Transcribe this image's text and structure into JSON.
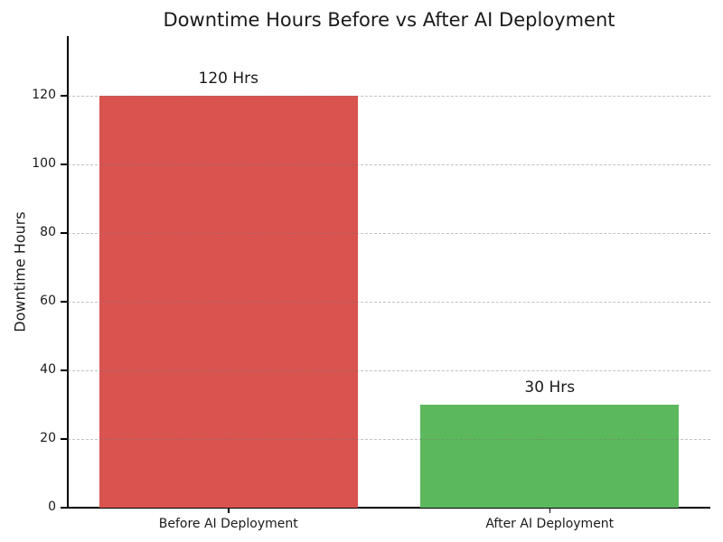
{
  "chart_data": {
    "type": "bar",
    "title": "Downtime Hours Before vs After AI Deployment",
    "xlabel": "",
    "ylabel": "Downtime Hours",
    "categories": [
      "Before AI Deployment",
      "After AI Deployment"
    ],
    "values": [
      120,
      30
    ],
    "bar_value_labels": [
      "120 Hrs",
      "30 Hrs"
    ],
    "bar_colors": [
      "#d9534f",
      "#5cb85c"
    ],
    "yticks": [
      0,
      20,
      40,
      60,
      80,
      100,
      120
    ],
    "ylim": [
      0,
      137.4
    ],
    "grid": "horizontal-dashed-above-bars",
    "legend": "none",
    "background_color": "#ffffff",
    "text_color": "#1a1a1a",
    "axis_color": "#000000"
  }
}
